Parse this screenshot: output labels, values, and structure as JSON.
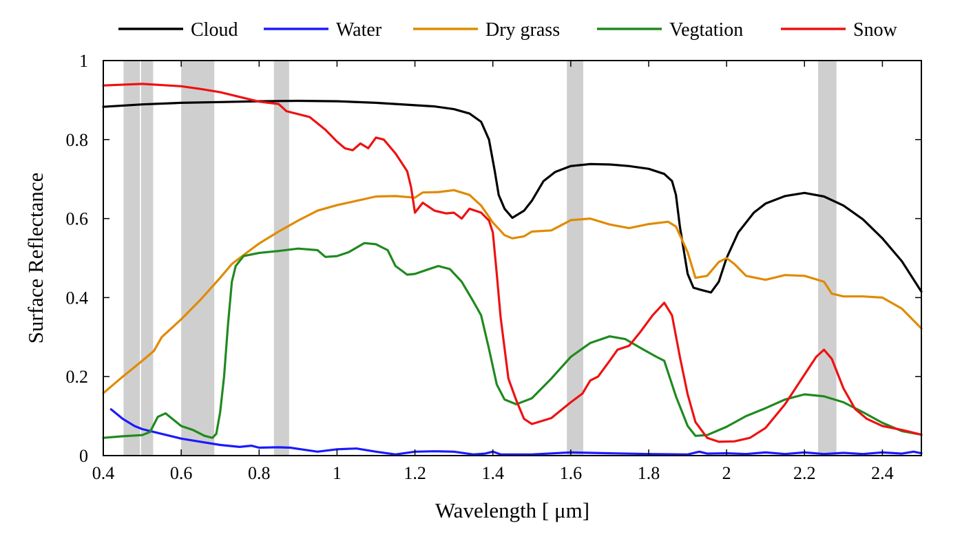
{
  "chart_data": {
    "type": "line",
    "title": "",
    "xlabel": "Wavelength [ μm]",
    "ylabel": "Surface Reflectance",
    "xlim": [
      0.4,
      2.5
    ],
    "ylim": [
      0,
      1
    ],
    "x_ticks": [
      0.4,
      0.6,
      0.8,
      1,
      1.2,
      1.4,
      1.6,
      1.8,
      2,
      2.2,
      2.4
    ],
    "x_tick_labels": [
      "0.4",
      "0.6",
      "0.8",
      "1",
      "1.2",
      "1.4",
      "1.6",
      "1.8",
      "2",
      "2.2",
      "2.4"
    ],
    "y_ticks": [
      0,
      0.2,
      0.4,
      0.6,
      0.8,
      1
    ],
    "y_tick_labels": [
      "0",
      "0.2",
      "0.4",
      "0.6",
      "0.8",
      "1"
    ],
    "grid": false,
    "legend_position": "top",
    "bands": [
      {
        "x0": 0.452,
        "x1": 0.494,
        "color": "#cfcfcf"
      },
      {
        "x0": 0.497,
        "x1": 0.528,
        "color": "#cfcfcf"
      },
      {
        "x0": 0.6,
        "x1": 0.685,
        "color": "#cfcfcf"
      },
      {
        "x0": 0.838,
        "x1": 0.877,
        "color": "#cfcfcf"
      },
      {
        "x0": 1.59,
        "x1": 1.632,
        "color": "#cfcfcf"
      },
      {
        "x0": 2.235,
        "x1": 2.282,
        "color": "#cfcfcf"
      }
    ],
    "series": [
      {
        "name": "Cloud",
        "color": "#000000",
        "points": [
          [
            0.4,
            0.883
          ],
          [
            0.5,
            0.889
          ],
          [
            0.6,
            0.893
          ],
          [
            0.7,
            0.895
          ],
          [
            0.8,
            0.897
          ],
          [
            0.9,
            0.898
          ],
          [
            1.0,
            0.897
          ],
          [
            1.1,
            0.893
          ],
          [
            1.2,
            0.887
          ],
          [
            1.25,
            0.884
          ],
          [
            1.3,
            0.877
          ],
          [
            1.34,
            0.866
          ],
          [
            1.37,
            0.845
          ],
          [
            1.39,
            0.8
          ],
          [
            1.405,
            0.72
          ],
          [
            1.415,
            0.66
          ],
          [
            1.43,
            0.625
          ],
          [
            1.45,
            0.602
          ],
          [
            1.48,
            0.62
          ],
          [
            1.5,
            0.645
          ],
          [
            1.53,
            0.695
          ],
          [
            1.56,
            0.718
          ],
          [
            1.6,
            0.733
          ],
          [
            1.65,
            0.738
          ],
          [
            1.7,
            0.737
          ],
          [
            1.75,
            0.733
          ],
          [
            1.8,
            0.726
          ],
          [
            1.84,
            0.713
          ],
          [
            1.86,
            0.695
          ],
          [
            1.87,
            0.66
          ],
          [
            1.88,
            0.58
          ],
          [
            1.9,
            0.46
          ],
          [
            1.915,
            0.425
          ],
          [
            1.94,
            0.418
          ],
          [
            1.96,
            0.413
          ],
          [
            1.98,
            0.44
          ],
          [
            2.0,
            0.5
          ],
          [
            2.03,
            0.565
          ],
          [
            2.07,
            0.615
          ],
          [
            2.1,
            0.638
          ],
          [
            2.15,
            0.657
          ],
          [
            2.2,
            0.665
          ],
          [
            2.25,
            0.656
          ],
          [
            2.3,
            0.633
          ],
          [
            2.35,
            0.598
          ],
          [
            2.4,
            0.55
          ],
          [
            2.45,
            0.492
          ],
          [
            2.5,
            0.415
          ]
        ]
      },
      {
        "name": "Water",
        "color": "#1a1aff",
        "points": [
          [
            0.42,
            0.117
          ],
          [
            0.45,
            0.093
          ],
          [
            0.48,
            0.075
          ],
          [
            0.5,
            0.067
          ],
          [
            0.55,
            0.055
          ],
          [
            0.6,
            0.043
          ],
          [
            0.65,
            0.035
          ],
          [
            0.7,
            0.027
          ],
          [
            0.75,
            0.022
          ],
          [
            0.78,
            0.025
          ],
          [
            0.8,
            0.02
          ],
          [
            0.85,
            0.021
          ],
          [
            0.88,
            0.02
          ],
          [
            0.9,
            0.017
          ],
          [
            0.95,
            0.01
          ],
          [
            1.0,
            0.016
          ],
          [
            1.05,
            0.018
          ],
          [
            1.1,
            0.01
          ],
          [
            1.15,
            0.003
          ],
          [
            1.2,
            0.01
          ],
          [
            1.25,
            0.011
          ],
          [
            1.3,
            0.01
          ],
          [
            1.35,
            0.003
          ],
          [
            1.38,
            0.005
          ],
          [
            1.4,
            0.01
          ],
          [
            1.42,
            0.003
          ],
          [
            1.5,
            0.003
          ],
          [
            1.6,
            0.008
          ],
          [
            1.7,
            0.006
          ],
          [
            1.8,
            0.004
          ],
          [
            1.9,
            0.003
          ],
          [
            1.93,
            0.01
          ],
          [
            1.95,
            0.005
          ],
          [
            2.0,
            0.006
          ],
          [
            2.05,
            0.004
          ],
          [
            2.1,
            0.008
          ],
          [
            2.15,
            0.004
          ],
          [
            2.2,
            0.008
          ],
          [
            2.25,
            0.004
          ],
          [
            2.3,
            0.007
          ],
          [
            2.35,
            0.004
          ],
          [
            2.4,
            0.008
          ],
          [
            2.45,
            0.005
          ],
          [
            2.48,
            0.01
          ],
          [
            2.5,
            0.006
          ]
        ]
      },
      {
        "name": "Dry grass",
        "color": "#e08a00",
        "points": [
          [
            0.4,
            0.158
          ],
          [
            0.45,
            0.2
          ],
          [
            0.5,
            0.24
          ],
          [
            0.53,
            0.265
          ],
          [
            0.55,
            0.3
          ],
          [
            0.6,
            0.345
          ],
          [
            0.65,
            0.395
          ],
          [
            0.7,
            0.45
          ],
          [
            0.73,
            0.485
          ],
          [
            0.77,
            0.515
          ],
          [
            0.8,
            0.537
          ],
          [
            0.85,
            0.567
          ],
          [
            0.9,
            0.595
          ],
          [
            0.95,
            0.62
          ],
          [
            1.0,
            0.634
          ],
          [
            1.05,
            0.645
          ],
          [
            1.1,
            0.656
          ],
          [
            1.15,
            0.657
          ],
          [
            1.2,
            0.653
          ],
          [
            1.22,
            0.666
          ],
          [
            1.26,
            0.667
          ],
          [
            1.3,
            0.672
          ],
          [
            1.34,
            0.66
          ],
          [
            1.37,
            0.633
          ],
          [
            1.4,
            0.59
          ],
          [
            1.43,
            0.558
          ],
          [
            1.45,
            0.55
          ],
          [
            1.48,
            0.555
          ],
          [
            1.5,
            0.567
          ],
          [
            1.55,
            0.57
          ],
          [
            1.6,
            0.596
          ],
          [
            1.65,
            0.6
          ],
          [
            1.7,
            0.585
          ],
          [
            1.75,
            0.576
          ],
          [
            1.8,
            0.586
          ],
          [
            1.85,
            0.592
          ],
          [
            1.87,
            0.58
          ],
          [
            1.9,
            0.515
          ],
          [
            1.92,
            0.45
          ],
          [
            1.95,
            0.455
          ],
          [
            1.98,
            0.49
          ],
          [
            2.0,
            0.5
          ],
          [
            2.02,
            0.485
          ],
          [
            2.05,
            0.455
          ],
          [
            2.1,
            0.445
          ],
          [
            2.15,
            0.457
          ],
          [
            2.2,
            0.455
          ],
          [
            2.25,
            0.44
          ],
          [
            2.27,
            0.41
          ],
          [
            2.3,
            0.403
          ],
          [
            2.35,
            0.403
          ],
          [
            2.4,
            0.4
          ],
          [
            2.45,
            0.372
          ],
          [
            2.5,
            0.322
          ]
        ]
      },
      {
        "name": "Vegtation",
        "color": "#1f8a1f",
        "points": [
          [
            0.4,
            0.045
          ],
          [
            0.45,
            0.049
          ],
          [
            0.5,
            0.052
          ],
          [
            0.52,
            0.06
          ],
          [
            0.54,
            0.098
          ],
          [
            0.56,
            0.107
          ],
          [
            0.6,
            0.075
          ],
          [
            0.63,
            0.065
          ],
          [
            0.66,
            0.05
          ],
          [
            0.68,
            0.045
          ],
          [
            0.69,
            0.055
          ],
          [
            0.7,
            0.11
          ],
          [
            0.71,
            0.2
          ],
          [
            0.72,
            0.33
          ],
          [
            0.73,
            0.44
          ],
          [
            0.74,
            0.48
          ],
          [
            0.76,
            0.505
          ],
          [
            0.8,
            0.513
          ],
          [
            0.85,
            0.518
          ],
          [
            0.9,
            0.524
          ],
          [
            0.95,
            0.52
          ],
          [
            0.97,
            0.503
          ],
          [
            1.0,
            0.505
          ],
          [
            1.03,
            0.515
          ],
          [
            1.07,
            0.538
          ],
          [
            1.1,
            0.535
          ],
          [
            1.13,
            0.52
          ],
          [
            1.15,
            0.48
          ],
          [
            1.18,
            0.458
          ],
          [
            1.2,
            0.46
          ],
          [
            1.23,
            0.47
          ],
          [
            1.26,
            0.48
          ],
          [
            1.29,
            0.472
          ],
          [
            1.32,
            0.44
          ],
          [
            1.35,
            0.39
          ],
          [
            1.37,
            0.355
          ],
          [
            1.39,
            0.27
          ],
          [
            1.41,
            0.18
          ],
          [
            1.43,
            0.142
          ],
          [
            1.46,
            0.13
          ],
          [
            1.5,
            0.145
          ],
          [
            1.55,
            0.195
          ],
          [
            1.6,
            0.25
          ],
          [
            1.65,
            0.285
          ],
          [
            1.7,
            0.302
          ],
          [
            1.74,
            0.295
          ],
          [
            1.78,
            0.272
          ],
          [
            1.82,
            0.25
          ],
          [
            1.84,
            0.24
          ],
          [
            1.87,
            0.15
          ],
          [
            1.9,
            0.075
          ],
          [
            1.92,
            0.05
          ],
          [
            1.95,
            0.052
          ],
          [
            2.0,
            0.073
          ],
          [
            2.05,
            0.1
          ],
          [
            2.1,
            0.12
          ],
          [
            2.15,
            0.142
          ],
          [
            2.2,
            0.155
          ],
          [
            2.25,
            0.15
          ],
          [
            2.3,
            0.135
          ],
          [
            2.35,
            0.11
          ],
          [
            2.4,
            0.083
          ],
          [
            2.45,
            0.062
          ],
          [
            2.5,
            0.053
          ]
        ]
      },
      {
        "name": "Snow",
        "color": "#ee1111",
        "points": [
          [
            0.4,
            0.937
          ],
          [
            0.5,
            0.941
          ],
          [
            0.6,
            0.935
          ],
          [
            0.65,
            0.928
          ],
          [
            0.7,
            0.92
          ],
          [
            0.75,
            0.908
          ],
          [
            0.8,
            0.896
          ],
          [
            0.85,
            0.89
          ],
          [
            0.87,
            0.872
          ],
          [
            0.93,
            0.857
          ],
          [
            0.97,
            0.825
          ],
          [
            1.0,
            0.795
          ],
          [
            1.02,
            0.778
          ],
          [
            1.04,
            0.773
          ],
          [
            1.06,
            0.79
          ],
          [
            1.08,
            0.778
          ],
          [
            1.1,
            0.805
          ],
          [
            1.12,
            0.8
          ],
          [
            1.15,
            0.765
          ],
          [
            1.18,
            0.72
          ],
          [
            1.19,
            0.68
          ],
          [
            1.2,
            0.615
          ],
          [
            1.22,
            0.64
          ],
          [
            1.25,
            0.62
          ],
          [
            1.28,
            0.613
          ],
          [
            1.3,
            0.615
          ],
          [
            1.32,
            0.6
          ],
          [
            1.34,
            0.625
          ],
          [
            1.37,
            0.615
          ],
          [
            1.39,
            0.595
          ],
          [
            1.4,
            0.565
          ],
          [
            1.41,
            0.46
          ],
          [
            1.42,
            0.35
          ],
          [
            1.44,
            0.195
          ],
          [
            1.46,
            0.14
          ],
          [
            1.48,
            0.093
          ],
          [
            1.5,
            0.08
          ],
          [
            1.55,
            0.095
          ],
          [
            1.6,
            0.135
          ],
          [
            1.63,
            0.157
          ],
          [
            1.65,
            0.19
          ],
          [
            1.67,
            0.2
          ],
          [
            1.7,
            0.24
          ],
          [
            1.72,
            0.268
          ],
          [
            1.75,
            0.278
          ],
          [
            1.78,
            0.315
          ],
          [
            1.81,
            0.355
          ],
          [
            1.84,
            0.387
          ],
          [
            1.86,
            0.355
          ],
          [
            1.88,
            0.25
          ],
          [
            1.9,
            0.155
          ],
          [
            1.92,
            0.085
          ],
          [
            1.95,
            0.045
          ],
          [
            1.98,
            0.035
          ],
          [
            2.02,
            0.036
          ],
          [
            2.06,
            0.045
          ],
          [
            2.1,
            0.07
          ],
          [
            2.15,
            0.13
          ],
          [
            2.2,
            0.205
          ],
          [
            2.23,
            0.25
          ],
          [
            2.25,
            0.268
          ],
          [
            2.27,
            0.245
          ],
          [
            2.3,
            0.17
          ],
          [
            2.33,
            0.118
          ],
          [
            2.36,
            0.093
          ],
          [
            2.4,
            0.075
          ],
          [
            2.45,
            0.065
          ],
          [
            2.5,
            0.053
          ]
        ]
      }
    ]
  }
}
